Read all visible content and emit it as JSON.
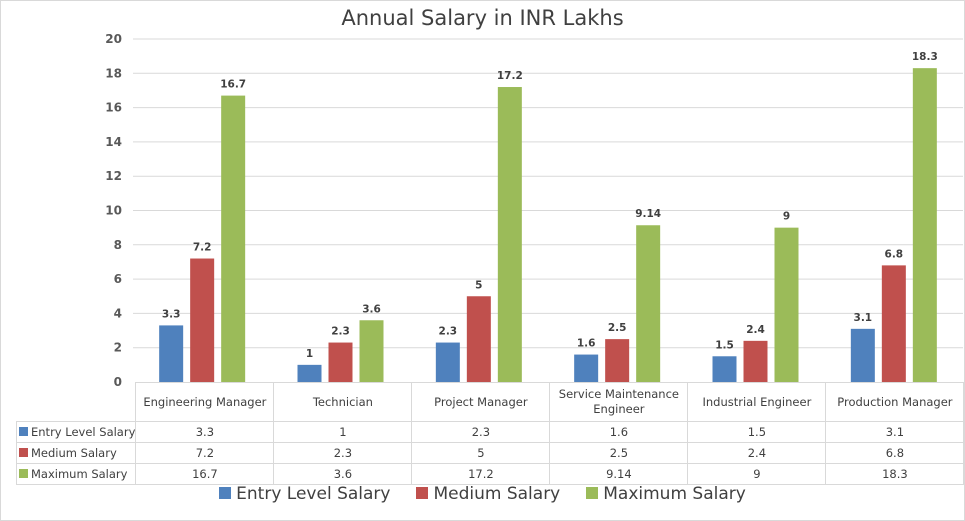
{
  "chart_data": {
    "type": "bar",
    "title": "Annual Salary in INR Lakhs",
    "xlabel": "",
    "ylabel": "",
    "ylim": [
      0,
      20
    ],
    "yticks": [
      0,
      2,
      4,
      6,
      8,
      10,
      12,
      14,
      16,
      18,
      20
    ],
    "grid": true,
    "legend_position": "bottom",
    "categories": [
      "Engineering Manager",
      "Technician",
      "Project Manager",
      "Service Maintenance Engineer",
      "Industrial Engineer",
      "Production Manager"
    ],
    "series": [
      {
        "name": "Entry Level Salary",
        "color": "#4f81bd",
        "values": [
          3.3,
          1,
          2.3,
          1.6,
          1.5,
          3.1
        ],
        "labels": [
          "3.3",
          "1",
          "2.3",
          "1.6",
          "1.5",
          "3.1"
        ]
      },
      {
        "name": "Medium Salary",
        "color": "#c0504d",
        "values": [
          7.2,
          2.3,
          5,
          2.5,
          2.4,
          6.8
        ],
        "labels": [
          "7.2",
          "2.3",
          "5",
          "2.5",
          "2.4",
          "6.8"
        ]
      },
      {
        "name": "Maximum Salary",
        "color": "#9bbb59",
        "values": [
          16.7,
          3.6,
          17.2,
          9.14,
          9,
          18.3
        ],
        "labels": [
          "16.7",
          "3.6",
          "17.2",
          "9.14",
          "9",
          "18.3"
        ]
      }
    ],
    "data_table": true
  }
}
